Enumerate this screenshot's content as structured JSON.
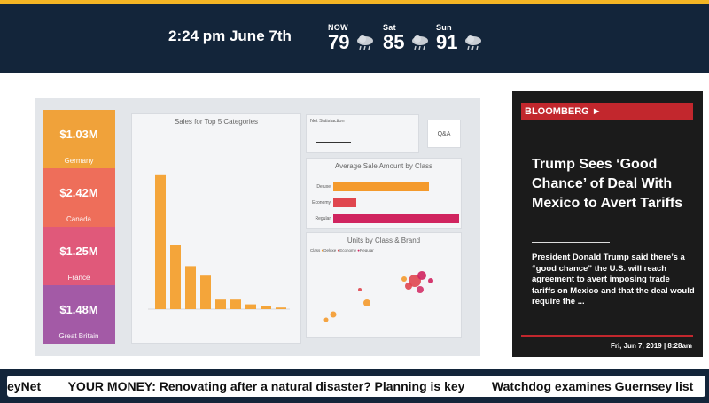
{
  "header": {
    "time": "2:24 pm June 7th",
    "weather": [
      {
        "label": "NOW",
        "temp": "79",
        "icon": "rain-cloud-icon"
      },
      {
        "label": "Sat",
        "temp": "85",
        "icon": "rain-cloud-icon"
      },
      {
        "label": "Sun",
        "temp": "91",
        "icon": "rain-cloud-icon"
      }
    ]
  },
  "dashboard": {
    "tiles": [
      {
        "value": "$1.03M",
        "name": "Germany",
        "color": "#f0a23a"
      },
      {
        "value": "$2.42M",
        "name": "Canada",
        "color": "#ee6e5a"
      },
      {
        "value": "$1.25M",
        "name": "France",
        "color": "#e0597a"
      },
      {
        "value": "$1.48M",
        "name": "Great Britain",
        "color": "#a35aa6"
      }
    ],
    "bar_title": "Sales for Top 5 Categories",
    "slicer_title": "Net Satisfaction",
    "qa_label": "Q&A",
    "avg_title": "Average Sale Amount by Class",
    "avg_rows": [
      {
        "label": "Deluxe",
        "fill": 0.76,
        "color": "#f49a2c"
      },
      {
        "label": "Economy",
        "fill": 0.18,
        "color": "#e0464f"
      },
      {
        "label": "Regular",
        "fill": 1.0,
        "color": "#d0245f"
      }
    ],
    "scatter_title": "Units by Class & Brand",
    "scatter_legend": [
      "Class",
      "Deluxe",
      "Economy",
      "Regular"
    ],
    "bars": [
      0.84,
      0.4,
      0.27,
      0.21,
      0.06,
      0.06,
      0.03,
      0.02,
      0.01
    ]
  },
  "news": {
    "source": "BLOOMBERG ►",
    "headline": "Trump Sees ‘Good Chance’ of Deal With Mexico to Avert Tariffs",
    "summary": "President Donald Trump said there’s a “good chance” the U.S. will reach agreement to avert imposing trade tariffs on Mexico and that the deal would require the ...",
    "date": "Fri, Jun 7, 2019 | 8:28am"
  },
  "ticker": {
    "items": [
      "eyNet",
      "YOUR MONEY: Renovating after a natural disaster? Planning is key",
      "Watchdog examines Guernsey list"
    ]
  }
}
